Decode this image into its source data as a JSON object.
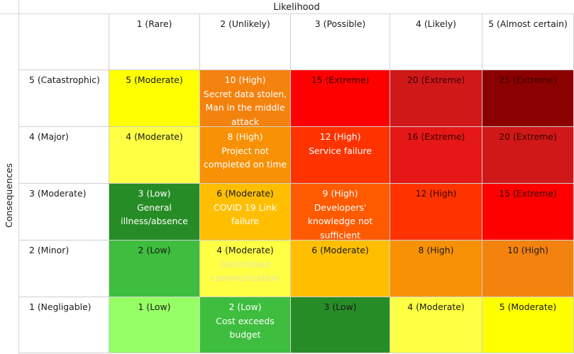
{
  "likelihood_title": "Likelihood",
  "consequences_title": "Consequences",
  "columns": [
    "1 (Rare)",
    "2 (Unlikely)",
    "3 (Possible)",
    "4 (Likely)",
    "5 (Almost certain)"
  ],
  "rows": [
    {
      "label": "5 (Catastrophic)",
      "cells": [
        {
          "label": "5 (Moderate)",
          "description": "",
          "bg": "#ffff00",
          "color": "#1a1a1a",
          "desc_color": "#1a1a1a"
        },
        {
          "label": "10 (High)",
          "description": "Secret data stolen, Man in the middle attack",
          "bg": "#f4820f",
          "color": "#ffffff",
          "desc_color": "#ffffff"
        },
        {
          "label": "15 (Extreme)",
          "description": "",
          "bg": "#ff0000",
          "color": "#3a0000",
          "desc_color": "#3a0000"
        },
        {
          "label": "20 (Extreme)",
          "description": "",
          "bg": "#d01818",
          "color": "#3a0000",
          "desc_color": "#3a0000"
        },
        {
          "label": "25 (Extreme)",
          "description": "",
          "bg": "#8b0000",
          "color": "#3a0000",
          "desc_color": "#3a0000"
        }
      ]
    },
    {
      "label": "4 (Major)",
      "cells": [
        {
          "label": "4 (Moderate)",
          "description": "",
          "bg": "#ffff44",
          "color": "#1a1a1a",
          "desc_color": "#1a1a1a"
        },
        {
          "label": "8 (High)",
          "description": "Project not completed on time",
          "bg": "#f89106",
          "color": "#ffffff",
          "desc_color": "#ffffff"
        },
        {
          "label": "12 (High)",
          "description": "Service failure",
          "bg": "#ff3300",
          "color": "#ffffff",
          "desc_color": "#ffffff"
        },
        {
          "label": "16 (Extreme)",
          "description": "",
          "bg": "#e51717",
          "color": "#3a0000",
          "desc_color": "#3a0000"
        },
        {
          "label": "20 (Extreme)",
          "description": "",
          "bg": "#d01818",
          "color": "#3a0000",
          "desc_color": "#3a0000"
        }
      ]
    },
    {
      "label": "3 (Moderate)",
      "cells": [
        {
          "label": "3 (Low)",
          "description": "General illness/absence",
          "bg": "#268c26",
          "color": "#ffffff",
          "desc_color": "#ffffff"
        },
        {
          "label": "6 (Moderate)",
          "description": "COVID 19 Link failure",
          "bg": "#ffbf00",
          "color": "#1a1a1a",
          "desc_color": "#ffffff"
        },
        {
          "label": "9 (High)",
          "description": "Developers' knowledge not sufficient",
          "bg": "#ff5a00",
          "color": "#ffffff",
          "desc_color": "#ffffff"
        },
        {
          "label": "12 (High)",
          "description": "",
          "bg": "#ff3300",
          "color": "#3a0000",
          "desc_color": "#3a0000"
        },
        {
          "label": "15 (Extreme)",
          "description": "",
          "bg": "#ff0000",
          "color": "#3a0000",
          "desc_color": "#3a0000"
        }
      ]
    },
    {
      "label": "2 (Minor)",
      "cells": [
        {
          "label": "2 (Low)",
          "description": "",
          "bg": "#3ebd3e",
          "color": "#1a1a1a",
          "desc_color": "#1a1a1a"
        },
        {
          "label": "4 (Moderate)",
          "description": "Diminished communication",
          "bg": "#ffff44",
          "color": "#1a1a1a",
          "desc_color": "#e6e6b0"
        },
        {
          "label": "6 (Moderate)",
          "description": "",
          "bg": "#ffbf00",
          "color": "#1a1a1a",
          "desc_color": "#1a1a1a"
        },
        {
          "label": "8 (High)",
          "description": "",
          "bg": "#f89106",
          "color": "#1a1a1a",
          "desc_color": "#1a1a1a"
        },
        {
          "label": "10 (High)",
          "description": "",
          "bg": "#f4820f",
          "color": "#1a1a1a",
          "desc_color": "#1a1a1a"
        }
      ]
    },
    {
      "label": "1 (Negligable)",
      "cells": [
        {
          "label": "1 (Low)",
          "description": "",
          "bg": "#96ff66",
          "color": "#1a1a1a",
          "desc_color": "#1a1a1a"
        },
        {
          "label": "2 (Low)",
          "description": "Cost exceeds budget",
          "bg": "#3ebd3e",
          "color": "#ffffff",
          "desc_color": "#ffffff"
        },
        {
          "label": "3 (Low)",
          "description": "",
          "bg": "#268c26",
          "color": "#1a1a1a",
          "desc_color": "#1a1a1a"
        },
        {
          "label": "4 (Moderate)",
          "description": "",
          "bg": "#ffff44",
          "color": "#1a1a1a",
          "desc_color": "#1a1a1a"
        },
        {
          "label": "5 (Moderate)",
          "description": "",
          "bg": "#ffff00",
          "color": "#1a1a1a",
          "desc_color": "#1a1a1a"
        }
      ]
    }
  ]
}
